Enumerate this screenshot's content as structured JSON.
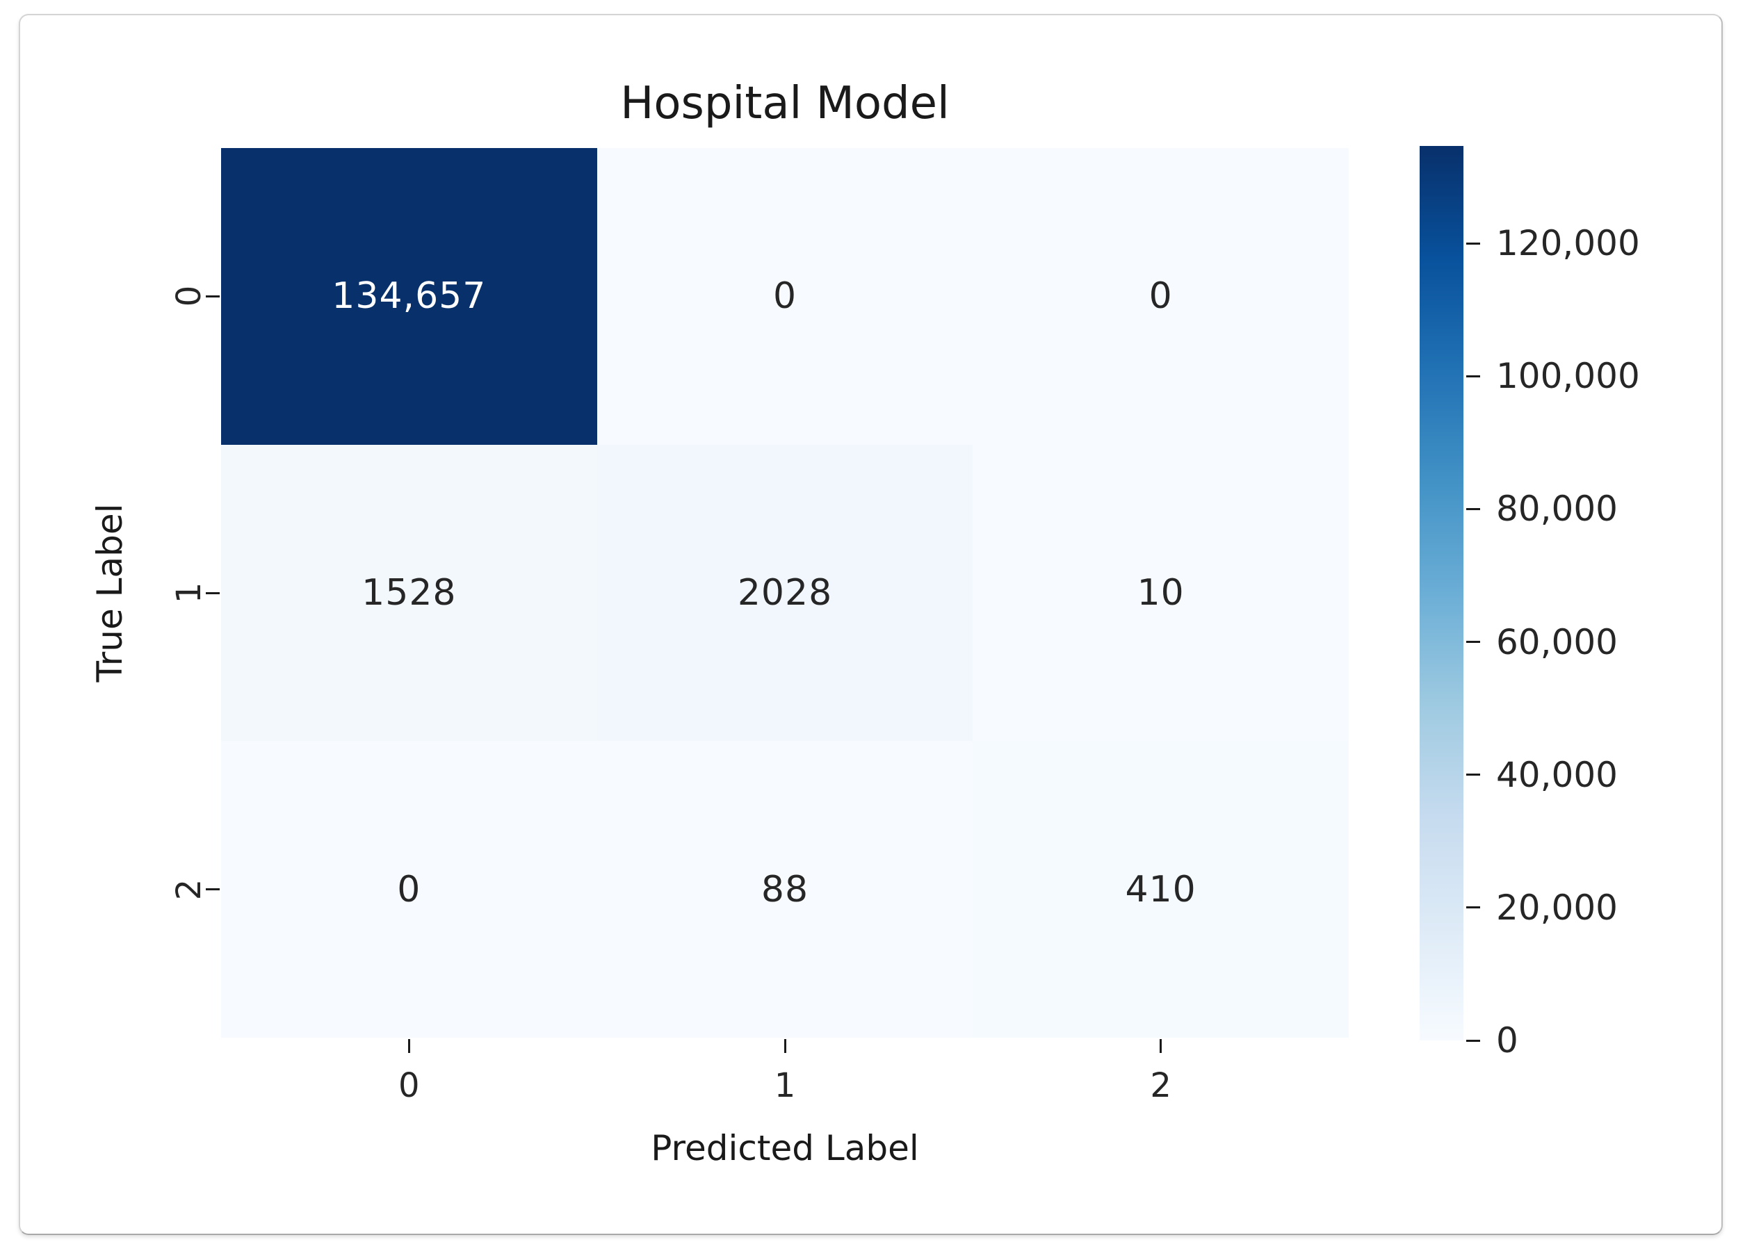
{
  "card": {
    "background": "#ffffff",
    "border_color": "#c9c9c9"
  },
  "chart_data": {
    "type": "heatmap",
    "title": "Hospital Model",
    "xlabel": "Predicted Label",
    "ylabel": "True Label",
    "x_tick_labels": [
      "0",
      "1",
      "2"
    ],
    "y_tick_labels": [
      "0",
      "1",
      "2"
    ],
    "matrix": [
      [
        134657,
        0,
        0
      ],
      [
        1528,
        2028,
        10
      ],
      [
        0,
        88,
        410
      ]
    ],
    "cell_labels": [
      [
        "134,657",
        "0",
        "0"
      ],
      [
        "1528",
        "2028",
        "10"
      ],
      [
        "0",
        "88",
        "410"
      ]
    ],
    "cell_colors": [
      [
        "#08306b",
        "#f7fbff",
        "#f7fbff"
      ],
      [
        "#f3f8fd",
        "#f2f7fd",
        "#f7fbff"
      ],
      [
        "#f7fbff",
        "#f7fafe",
        "#f5fafe"
      ]
    ],
    "cell_text_colors": [
      [
        "#ffffff",
        "#262626",
        "#262626"
      ],
      [
        "#262626",
        "#262626",
        "#262626"
      ],
      [
        "#262626",
        "#262626",
        "#262626"
      ]
    ],
    "colormap": "Blues",
    "grid": false,
    "colorbar_position": "right",
    "colorbar": {
      "vmin": 0,
      "vmax": 134657,
      "tick_values": [
        0,
        20000,
        40000,
        60000,
        80000,
        100000,
        120000
      ],
      "tick_labels": [
        "0",
        "20,000",
        "40,000",
        "60,000",
        "80,000",
        "100,000",
        "120,000"
      ],
      "gradient_stops_low_to_high": [
        "#f7fbff",
        "#deebf7",
        "#c6dbef",
        "#9ecae1",
        "#6baed6",
        "#4292c6",
        "#2171b5",
        "#08519c",
        "#08306b"
      ]
    },
    "text_color": "#1a1a1a"
  }
}
